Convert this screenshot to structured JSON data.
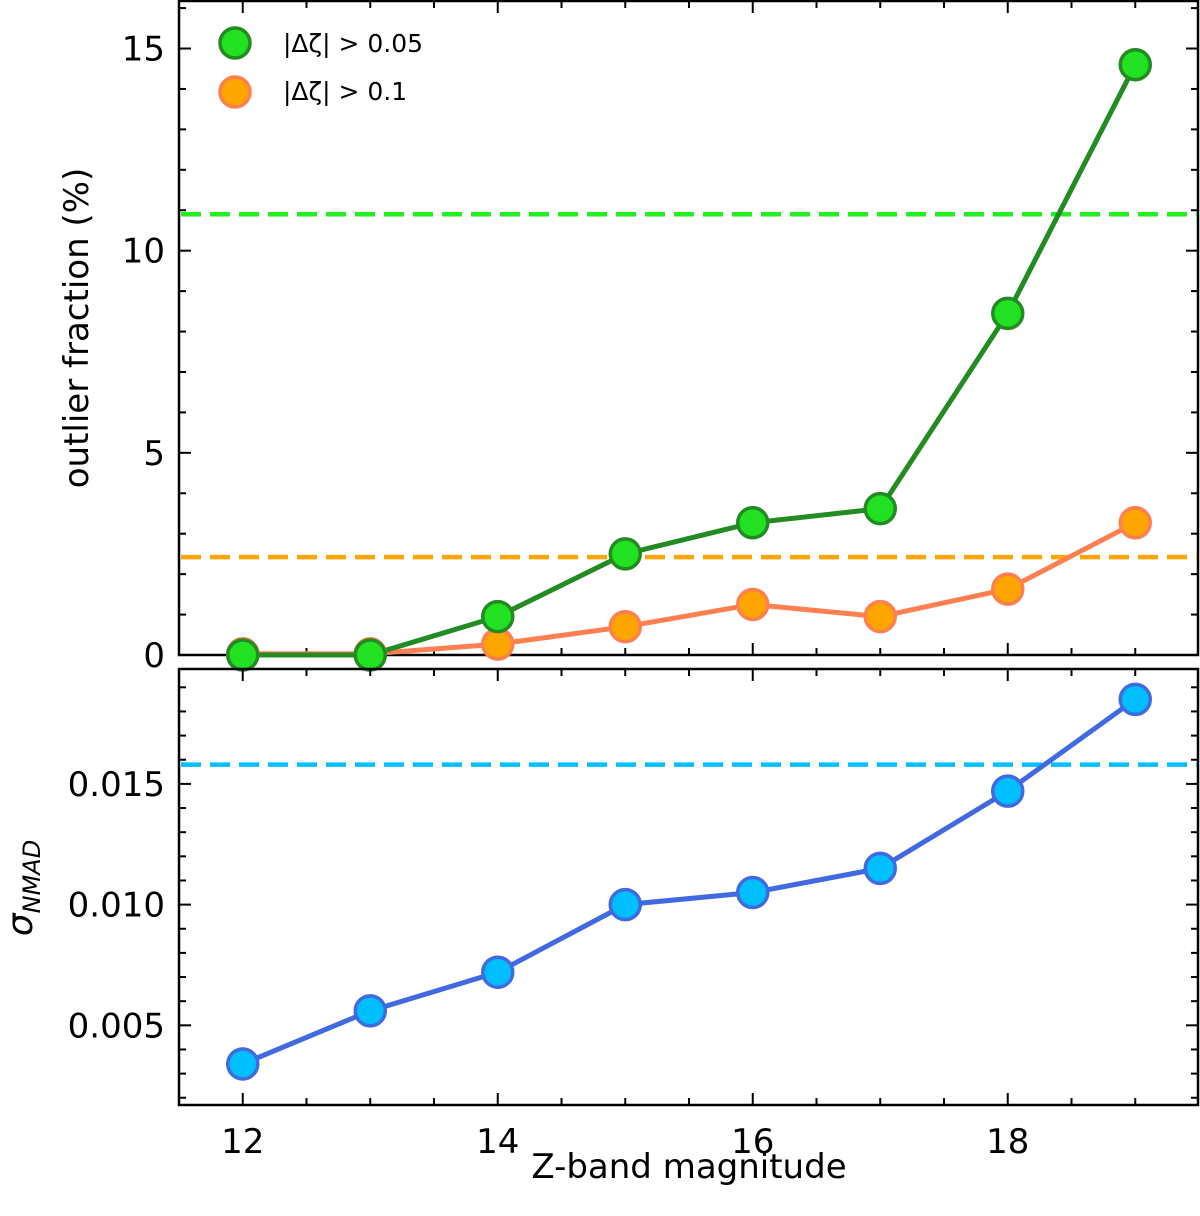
{
  "chart_data": [
    {
      "type": "line",
      "panel": "top",
      "xlabel": "",
      "ylabel": "outlier fraction (%)",
      "xlim": [
        11.5,
        19.5
      ],
      "ylim": [
        0,
        16.2
      ],
      "yticks": [
        0,
        5,
        10,
        15
      ],
      "ytick_labels": [
        "0",
        "5",
        "10",
        "15"
      ],
      "legend_position": "top-left",
      "x": [
        12,
        13,
        14,
        15,
        16,
        17,
        18,
        19
      ],
      "series": [
        {
          "name": "|Δζ| > 0.05",
          "values": [
            0.0,
            0.0,
            0.95,
            2.5,
            3.27,
            3.62,
            8.45,
            14.6
          ],
          "line_color": "#228b22",
          "marker_fill": "#22e022",
          "marker_edge": "#228b22",
          "reference": 10.9,
          "reference_color": "#22ee22"
        },
        {
          "name": "|Δζ| > 0.1",
          "values": [
            0.03,
            0.03,
            0.27,
            0.7,
            1.25,
            0.95,
            1.63,
            3.27
          ],
          "line_color": "#ff7f50",
          "marker_fill": "#ffa500",
          "marker_edge": "#ff7f50",
          "reference": 2.42,
          "reference_color": "#ffa500"
        }
      ]
    },
    {
      "type": "line",
      "panel": "bottom",
      "xlabel": "Z-band magnitude",
      "ylabel": "σNMAD",
      "ylabel_main": "σ",
      "ylabel_sub": "NMAD",
      "xlim": [
        11.5,
        19.5
      ],
      "ylim": [
        0.0017,
        0.0198
      ],
      "xticks": [
        12,
        14,
        16,
        18
      ],
      "xtick_labels": [
        "12",
        "14",
        "16",
        "18"
      ],
      "yticks": [
        0.005,
        0.01,
        0.015
      ],
      "ytick_labels": [
        "0.005",
        "0.010",
        "0.015"
      ],
      "x": [
        12,
        13,
        14,
        15,
        16,
        17,
        18,
        19
      ],
      "series": [
        {
          "name": "sigma_nmad",
          "values": [
            0.0034,
            0.0056,
            0.0072,
            0.01,
            0.0105,
            0.0115,
            0.0147,
            0.0185
          ],
          "line_color": "#4169e1",
          "marker_fill": "#00bfff",
          "marker_edge": "#4169e1",
          "reference": 0.0158,
          "reference_color": "#00bfff"
        }
      ]
    }
  ]
}
